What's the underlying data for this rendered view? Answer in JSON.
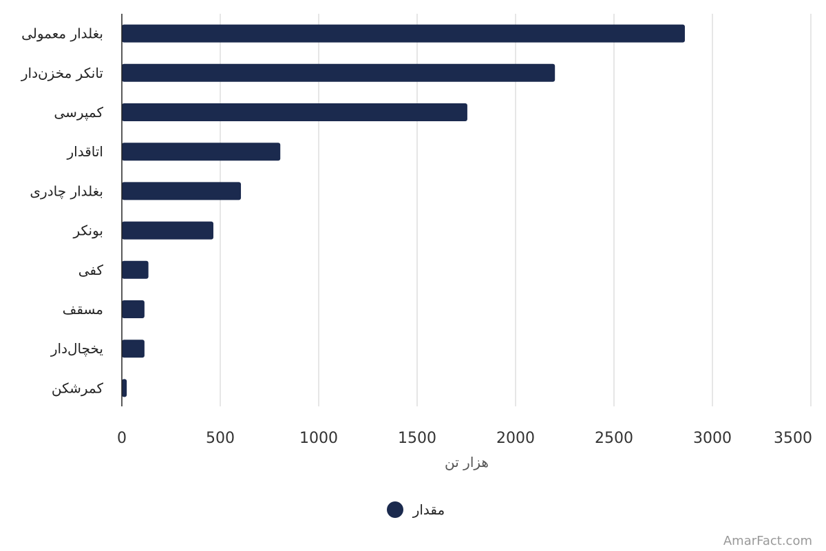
{
  "chart_data": {
    "type": "bar",
    "orientation": "horizontal",
    "categories": [
      "بغلدار معمولی",
      "تانکر مخزن‌دار",
      "کمپرسی",
      "اتاقدار",
      "بغلدار چادری",
      "بونکر",
      "کفی",
      "مسقف",
      "یخچال‌دار",
      "کمرشکن"
    ],
    "series": [
      {
        "name": "مقدار",
        "values": [
          2860,
          2200,
          1755,
          805,
          605,
          465,
          135,
          115,
          115,
          25
        ]
      }
    ],
    "xlabel": "هزار تن",
    "ylabel": "",
    "xlim": [
      0,
      3500
    ],
    "xticks": [
      0,
      500,
      1000,
      1500,
      2000,
      2500,
      3000,
      3500
    ],
    "grid": true,
    "legend_position": "bottom-center",
    "bar_color": "#1b2a4e"
  },
  "credit": "AmarFact.com"
}
